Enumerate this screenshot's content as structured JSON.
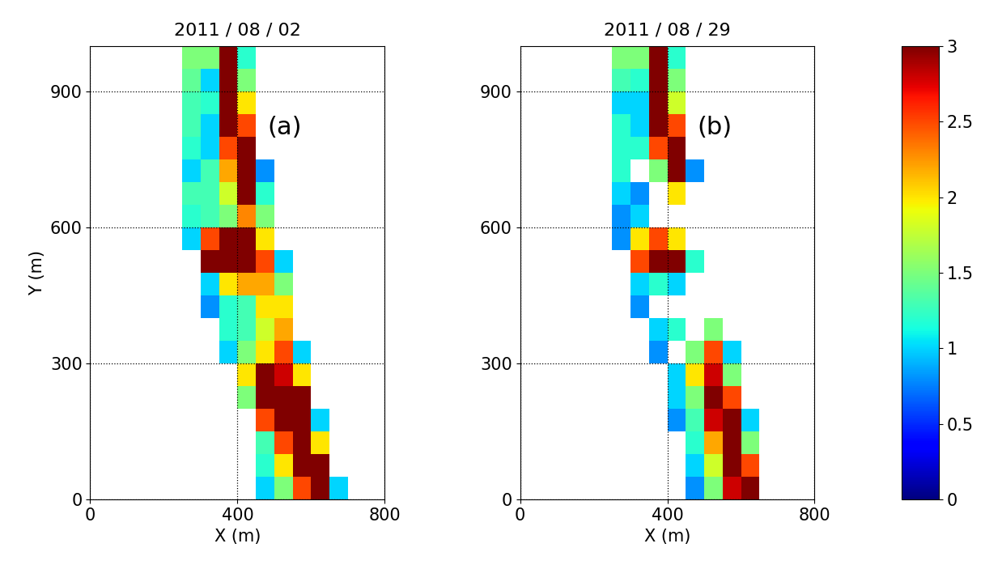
{
  "chart_data": [
    {
      "type": "heatmap",
      "title": "2011 / 08 / 02",
      "x_label": "X (m)",
      "y_label": "Y (m)",
      "annotation": "(a)",
      "xlim": [
        0,
        800
      ],
      "ylim": [
        0,
        1000
      ],
      "xticks": [
        0,
        400,
        800
      ],
      "yticks": [
        0,
        300,
        600,
        900
      ],
      "grid": true,
      "x_edges": [
        200,
        250,
        300,
        350,
        400,
        450,
        500,
        550,
        600,
        650,
        700
      ],
      "y_edges": [
        0,
        50,
        100,
        150,
        200,
        250,
        300,
        350,
        400,
        450,
        500,
        550,
        600,
        650,
        700,
        750,
        800,
        850,
        900,
        950,
        1000
      ],
      "cells": [
        [
          null,
          null,
          null,
          null,
          null,
          1.0,
          1.5,
          2.5,
          3,
          1.0
        ],
        [
          null,
          null,
          null,
          null,
          null,
          1.2,
          2.0,
          3,
          3,
          null
        ],
        [
          null,
          null,
          null,
          null,
          null,
          1.3,
          2.5,
          3,
          2.0,
          null
        ],
        [
          null,
          null,
          null,
          null,
          null,
          2.5,
          3,
          3,
          1.0,
          null
        ],
        [
          null,
          null,
          null,
          null,
          1.5,
          3,
          3,
          3,
          null,
          null
        ],
        [
          null,
          null,
          null,
          null,
          2.0,
          3,
          2.8,
          2.0,
          null,
          null
        ],
        [
          null,
          null,
          null,
          1.0,
          1.5,
          2.0,
          2.5,
          1.0,
          null,
          null
        ],
        [
          null,
          null,
          null,
          1.2,
          1.3,
          1.8,
          2.2,
          null,
          null,
          null
        ],
        [
          null,
          null,
          0.8,
          1.2,
          1.3,
          2.0,
          2.0,
          null,
          null,
          null
        ],
        [
          null,
          null,
          1.0,
          2.0,
          2.2,
          2.2,
          1.5,
          null,
          null,
          null
        ],
        [
          null,
          null,
          3,
          3,
          3,
          2.5,
          1.0,
          null,
          null,
          null
        ],
        [
          null,
          1.0,
          2.5,
          3,
          3,
          2.0,
          null,
          null,
          null,
          null
        ],
        [
          null,
          1.2,
          1.3,
          1.5,
          2.3,
          1.5,
          null,
          null,
          null,
          null
        ],
        [
          null,
          1.3,
          1.3,
          1.8,
          3,
          1.2,
          null,
          null,
          null,
          null
        ],
        [
          null,
          1.0,
          1.3,
          2.2,
          3,
          0.8,
          null,
          null,
          null,
          null
        ],
        [
          null,
          1.2,
          1.0,
          2.5,
          3,
          null,
          null,
          null,
          null,
          null
        ],
        [
          null,
          1.3,
          1.0,
          3,
          2.5,
          null,
          null,
          null,
          null,
          null
        ],
        [
          null,
          1.3,
          1.2,
          3,
          2.0,
          null,
          null,
          null,
          null,
          null
        ],
        [
          null,
          1.4,
          1.0,
          3,
          1.5,
          null,
          null,
          null,
          null,
          null
        ],
        [
          null,
          1.5,
          1.5,
          3,
          1.2,
          null,
          null,
          null,
          null,
          null
        ]
      ]
    },
    {
      "type": "heatmap",
      "title": "2011 / 08 / 29",
      "x_label": "X (m)",
      "annotation": "(b)",
      "xlim": [
        0,
        800
      ],
      "ylim": [
        0,
        1000
      ],
      "xticks": [
        0,
        400,
        800
      ],
      "yticks": [
        0,
        300,
        600,
        900
      ],
      "grid": true,
      "x_edges": [
        200,
        250,
        300,
        350,
        400,
        450,
        500,
        550,
        600,
        650,
        700
      ],
      "y_edges": [
        0,
        50,
        100,
        150,
        200,
        250,
        300,
        350,
        400,
        450,
        500,
        550,
        600,
        650,
        700,
        750,
        800,
        850,
        900,
        950,
        1000
      ],
      "cells": [
        [
          null,
          null,
          null,
          null,
          null,
          0.8,
          1.5,
          2.8,
          3,
          null
        ],
        [
          null,
          null,
          null,
          null,
          null,
          1.0,
          1.8,
          3,
          2.5,
          null
        ],
        [
          null,
          null,
          null,
          null,
          null,
          1.2,
          2.2,
          3,
          1.5,
          null
        ],
        [
          null,
          null,
          null,
          null,
          0.8,
          1.3,
          2.8,
          3,
          1.0,
          null
        ],
        [
          null,
          null,
          null,
          null,
          1.0,
          1.5,
          3,
          2.5,
          null,
          null
        ],
        [
          null,
          null,
          null,
          null,
          1.0,
          2.0,
          2.8,
          1.5,
          null,
          null
        ],
        [
          null,
          null,
          null,
          0.8,
          null,
          1.5,
          2.5,
          1.0,
          null,
          null
        ],
        [
          null,
          null,
          null,
          1.0,
          1.2,
          null,
          1.5,
          null,
          null,
          null
        ],
        [
          null,
          null,
          0.8,
          null,
          null,
          null,
          null,
          null,
          null,
          null
        ],
        [
          null,
          null,
          1.0,
          1.2,
          1.0,
          null,
          null,
          null,
          null,
          null
        ],
        [
          null,
          null,
          2.5,
          3,
          3,
          1.2,
          null,
          null,
          null,
          null
        ],
        [
          null,
          0.8,
          2.0,
          2.5,
          2.0,
          null,
          null,
          null,
          null,
          null
        ],
        [
          null,
          0.8,
          1.0,
          null,
          null,
          null,
          null,
          null,
          null,
          null
        ],
        [
          null,
          1.0,
          0.8,
          null,
          2.0,
          null,
          null,
          null,
          null,
          null
        ],
        [
          null,
          1.2,
          null,
          1.5,
          3,
          0.8,
          null,
          null,
          null,
          null
        ],
        [
          null,
          1.2,
          1.2,
          2.5,
          3,
          null,
          null,
          null,
          null,
          null
        ],
        [
          null,
          1.2,
          1.0,
          3,
          2.5,
          null,
          null,
          null,
          null,
          null
        ],
        [
          null,
          1.0,
          1.0,
          3,
          1.8,
          null,
          null,
          null,
          null,
          null
        ],
        [
          null,
          1.3,
          1.2,
          3,
          1.5,
          null,
          null,
          null,
          null,
          null
        ],
        [
          null,
          1.5,
          1.5,
          3,
          1.2,
          null,
          null,
          null,
          null,
          null
        ]
      ]
    }
  ],
  "colorbar": {
    "range": [
      0,
      3
    ],
    "ticks": [
      0,
      0.5,
      1,
      1.5,
      2,
      2.5,
      3
    ]
  }
}
